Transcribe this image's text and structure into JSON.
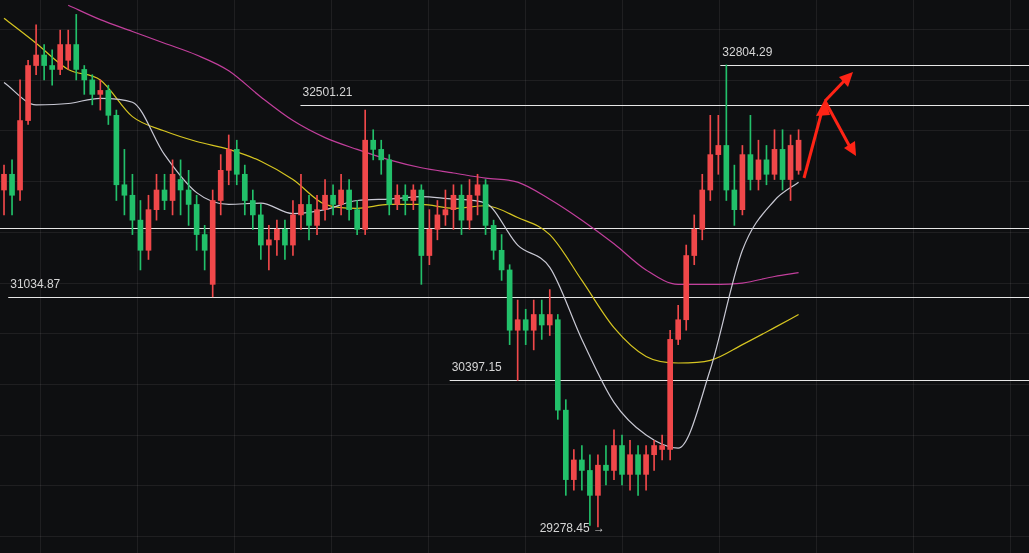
{
  "chart_data": {
    "type": "candlestick",
    "categories": [
      null,
      null,
      null,
      null,
      null,
      null,
      null,
      null,
      null,
      null,
      null,
      null,
      null,
      null,
      null,
      null,
      null,
      null,
      null,
      null,
      null,
      null,
      null,
      null,
      null,
      null,
      null,
      null,
      null,
      null,
      null,
      null,
      null,
      null,
      null,
      null,
      null,
      null,
      null,
      null,
      null,
      null,
      null,
      null,
      null,
      null,
      null,
      null,
      null,
      null,
      null,
      null,
      null,
      null,
      null,
      null,
      null,
      null,
      null,
      null,
      null,
      null,
      null,
      null,
      null,
      null,
      null,
      null,
      null,
      null,
      null,
      null,
      null,
      null,
      null,
      null,
      null,
      null,
      null,
      null,
      null,
      null,
      null,
      null,
      null,
      null,
      null,
      null,
      null,
      null,
      null,
      null,
      null,
      null,
      null,
      null,
      null,
      null,
      null,
      null
    ],
    "ohlc": [
      [
        31850,
        32040,
        31660,
        31970
      ],
      [
        31970,
        32080,
        31660,
        31810
      ],
      [
        31850,
        32690,
        31770,
        32380
      ],
      [
        32380,
        32840,
        32350,
        32800
      ],
      [
        32800,
        33110,
        32730,
        32880
      ],
      [
        32880,
        32960,
        32690,
        32800
      ],
      [
        32800,
        32920,
        32650,
        32770
      ],
      [
        32770,
        33070,
        32730,
        32960
      ],
      [
        32840,
        33070,
        32770,
        32960
      ],
      [
        32960,
        33190,
        32690,
        32770
      ],
      [
        32770,
        32800,
        32580,
        32690
      ],
      [
        32690,
        32730,
        32500,
        32580
      ],
      [
        32580,
        32690,
        32460,
        32610
      ],
      [
        32610,
        32650,
        32350,
        32420
      ],
      [
        32420,
        32460,
        31770,
        31890
      ],
      [
        31890,
        32160,
        31660,
        31810
      ],
      [
        31810,
        31970,
        31510,
        31620
      ],
      [
        31620,
        31770,
        31240,
        31390
      ],
      [
        31390,
        31810,
        31320,
        31700
      ],
      [
        31700,
        31970,
        31620,
        31850
      ],
      [
        31850,
        31970,
        31700,
        31770
      ],
      [
        31770,
        32080,
        31660,
        31970
      ],
      [
        31930,
        32080,
        31660,
        31850
      ],
      [
        31850,
        32000,
        31580,
        31740
      ],
      [
        31740,
        31810,
        31390,
        31510
      ],
      [
        31510,
        31580,
        31240,
        31390
      ],
      [
        31130,
        31850,
        31034.87,
        31770
      ],
      [
        31770,
        32120,
        31660,
        32000
      ],
      [
        32000,
        32270,
        31890,
        32160
      ],
      [
        32160,
        32230,
        31890,
        31970
      ],
      [
        31970,
        32040,
        31660,
        31770
      ],
      [
        31770,
        31850,
        31550,
        31660
      ],
      [
        31660,
        31740,
        31320,
        31430
      ],
      [
        31430,
        31580,
        31240,
        31470
      ],
      [
        31470,
        31620,
        31350,
        31550
      ],
      [
        31550,
        31620,
        31320,
        31430
      ],
      [
        31430,
        31770,
        31350,
        31660
      ],
      [
        31660,
        31970,
        31550,
        31740
      ],
      [
        31740,
        31810,
        31470,
        31580
      ],
      [
        31580,
        31810,
        31510,
        31700
      ],
      [
        31700,
        31930,
        31620,
        31810
      ],
      [
        31810,
        31890,
        31660,
        31740
      ],
      [
        31740,
        31970,
        31660,
        31850
      ],
      [
        31850,
        31930,
        31620,
        31700
      ],
      [
        31700,
        31770,
        31510,
        31550
      ],
      [
        31550,
        32460,
        31510,
        32230
      ],
      [
        32230,
        32310,
        32080,
        32160
      ],
      [
        32160,
        32230,
        31970,
        32080
      ],
      [
        32080,
        32120,
        31660,
        31740
      ],
      [
        31740,
        31890,
        31700,
        31810
      ],
      [
        31810,
        31890,
        31660,
        31770
      ],
      [
        31770,
        31890,
        31700,
        31850
      ],
      [
        31850,
        31890,
        31130,
        31350
      ],
      [
        31350,
        31700,
        31280,
        31550
      ],
      [
        31550,
        31770,
        31470,
        31660
      ],
      [
        31660,
        31850,
        31580,
        31700
      ],
      [
        31700,
        31890,
        31550,
        31810
      ],
      [
        31810,
        31890,
        31510,
        31620
      ],
      [
        31620,
        31930,
        31550,
        31810
      ],
      [
        31810,
        31970,
        31660,
        31890
      ],
      [
        31890,
        31930,
        31510,
        31580
      ],
      [
        31580,
        31620,
        31320,
        31390
      ],
      [
        31390,
        31510,
        31160,
        31240
      ],
      [
        31240,
        31280,
        30670,
        30780
      ],
      [
        30780,
        31010,
        30397.15,
        30860
      ],
      [
        30860,
        30940,
        30670,
        30780
      ],
      [
        30780,
        31010,
        30630,
        30900
      ],
      [
        30900,
        31010,
        30710,
        30820
      ],
      [
        30820,
        31090,
        30740,
        30900
      ],
      [
        30860,
        30900,
        30100,
        30170
      ],
      [
        30170,
        30250,
        29520,
        29640
      ],
      [
        29640,
        29870,
        29560,
        29790
      ],
      [
        29790,
        29900,
        29560,
        29710
      ],
      [
        29710,
        29830,
        29290,
        29520
      ],
      [
        29520,
        29830,
        29278.45,
        29750
      ],
      [
        29750,
        29900,
        29600,
        29710
      ],
      [
        29710,
        30020,
        29640,
        29900
      ],
      [
        29900,
        29980,
        29600,
        29680
      ],
      [
        29680,
        29940,
        29560,
        29830
      ],
      [
        29830,
        29900,
        29520,
        29680
      ],
      [
        29680,
        29900,
        29560,
        29830
      ],
      [
        29830,
        29940,
        29710,
        29900
      ],
      [
        29870,
        29980,
        29790,
        29900
      ],
      [
        29870,
        30780,
        29790,
        30710
      ],
      [
        30710,
        30970,
        30670,
        30860
      ],
      [
        30860,
        31430,
        30780,
        31350
      ],
      [
        31350,
        31660,
        31280,
        31550
      ],
      [
        31550,
        31970,
        31470,
        31850
      ],
      [
        31850,
        32420,
        31770,
        32120
      ],
      [
        32120,
        32420,
        31970,
        32190
      ],
      [
        32190,
        32804.29,
        31770,
        31850
      ],
      [
        31850,
        32040,
        31580,
        31700
      ],
      [
        31700,
        32190,
        31660,
        32120
      ],
      [
        32120,
        32420,
        31850,
        31930
      ],
      [
        31930,
        32230,
        31850,
        32080
      ],
      [
        32080,
        32190,
        31890,
        31970
      ],
      [
        31970,
        32310,
        31930,
        32160
      ],
      [
        32160,
        32310,
        31850,
        31930
      ],
      [
        31930,
        32270,
        31770,
        32190
      ],
      [
        32000,
        32310,
        31970,
        32230
      ]
    ],
    "colors": [
      "#f0484a",
      "#22c06a",
      "#f0484a",
      "#f0484a",
      "#f0484a",
      "#22c06a",
      "#22c06a",
      "#f0484a",
      "#f0484a",
      "#22c06a",
      "#22c06a",
      "#22c06a",
      "#f0484a",
      "#22c06a",
      "#22c06a",
      "#22c06a",
      "#22c06a",
      "#22c06a",
      "#f0484a",
      "#f0484a",
      "#22c06a",
      "#f0484a",
      "#22c06a",
      "#22c06a",
      "#22c06a",
      "#22c06a",
      "#f0484a",
      "#f0484a",
      "#f0484a",
      "#22c06a",
      "#22c06a",
      "#22c06a",
      "#22c06a",
      "#f0484a",
      "#f0484a",
      "#22c06a",
      "#f0484a",
      "#f0484a",
      "#22c06a",
      "#f0484a",
      "#f0484a",
      "#22c06a",
      "#f0484a",
      "#22c06a",
      "#22c06a",
      "#f0484a",
      "#22c06a",
      "#22c06a",
      "#22c06a",
      "#f0484a",
      "#22c06a",
      "#f0484a",
      "#22c06a",
      "#f0484a",
      "#f0484a",
      "#f0484a",
      "#f0484a",
      "#22c06a",
      "#f0484a",
      "#f0484a",
      "#22c06a",
      "#22c06a",
      "#22c06a",
      "#22c06a",
      "#f0484a",
      "#22c06a",
      "#f0484a",
      "#22c06a",
      "#f0484a",
      "#22c06a",
      "#22c06a",
      "#f0484a",
      "#22c06a",
      "#22c06a",
      "#f0484a",
      "#22c06a",
      "#f0484a",
      "#22c06a",
      "#f0484a",
      "#22c06a",
      "#f0484a",
      "#f0484a",
      "#f0484a",
      "#f0484a",
      "#f0484a",
      "#f0484a",
      "#f0484a",
      "#f0484a",
      "#f0484a",
      "#f0484a",
      "#22c06a",
      "#22c06a",
      "#f0484a",
      "#22c06a",
      "#f0484a",
      "#22c06a",
      "#f0484a",
      "#22c06a",
      "#f0484a",
      "#f0484a"
    ],
    "series": [
      {
        "type": "line",
        "color": "#c9c9d4",
        "values": [
          32670,
          null,
          null,
          null,
          32500,
          null,
          null,
          null,
          32510,
          null,
          null,
          null,
          32550,
          null,
          null,
          null,
          32520,
          null,
          null,
          null,
          32120,
          null,
          null,
          null,
          31830,
          null,
          null,
          null,
          31740,
          null,
          null,
          null,
          31750,
          null,
          null,
          null,
          31670,
          null,
          null,
          null,
          31700,
          null,
          null,
          null,
          31770,
          null,
          null,
          null,
          31780,
          null,
          null,
          null,
          31800,
          null,
          null,
          null,
          31780,
          null,
          null,
          null,
          31750,
          null,
          null,
          null,
          31430,
          null,
          null,
          null,
          31260,
          null,
          null,
          null,
          30710,
          null,
          null,
          null,
          30230,
          null,
          null,
          null,
          29980,
          null,
          null,
          null,
          29880,
          null,
          null,
          null,
          30480,
          null,
          null,
          null,
          31390,
          null,
          null,
          null,
          31770,
          null,
          null,
          31910
        ]
      },
      {
        "type": "line",
        "color": "#d6c521",
        "values": [
          33160,
          null,
          null,
          null,
          32970,
          null,
          null,
          null,
          32770,
          null,
          null,
          null,
          32690,
          null,
          null,
          null,
          32410,
          null,
          null,
          null,
          32300,
          null,
          null,
          null,
          32220,
          null,
          null,
          null,
          32160,
          null,
          null,
          null,
          32070,
          null,
          null,
          null,
          31930,
          null,
          null,
          null,
          31740,
          null,
          null,
          null,
          31710,
          null,
          null,
          null,
          31740,
          null,
          null,
          null,
          31740,
          null,
          null,
          null,
          31710,
          null,
          null,
          null,
          31730,
          null,
          null,
          null,
          31640,
          null,
          null,
          null,
          31510,
          null,
          null,
          null,
          31160,
          null,
          null,
          null,
          30800,
          null,
          null,
          null,
          30580,
          null,
          null,
          null,
          30530,
          null,
          null,
          null,
          30550,
          null,
          null,
          null,
          30670,
          null,
          null,
          null,
          30800,
          null,
          null,
          30900
        ]
      },
      {
        "type": "line",
        "color": "#c23f9c",
        "values": [
          null,
          null,
          null,
          null,
          null,
          null,
          null,
          null,
          33260,
          null,
          null,
          null,
          33150,
          null,
          null,
          null,
          33060,
          null,
          null,
          null,
          32970,
          null,
          null,
          null,
          32880,
          null,
          null,
          null,
          32760,
          null,
          null,
          null,
          32560,
          null,
          null,
          null,
          32380,
          null,
          null,
          null,
          32250,
          null,
          null,
          null,
          32160,
          null,
          null,
          null,
          32080,
          null,
          null,
          null,
          32020,
          null,
          null,
          null,
          31980,
          null,
          null,
          null,
          31940,
          null,
          null,
          null,
          31910,
          null,
          null,
          null,
          31780,
          null,
          null,
          null,
          31620,
          null,
          null,
          null,
          31440,
          null,
          null,
          null,
          31240,
          null,
          null,
          null,
          31130,
          null,
          null,
          null,
          31130,
          null,
          null,
          null,
          31140,
          null,
          null,
          null,
          31190,
          null,
          null,
          31220
        ]
      }
    ],
    "ylim": [
      29080,
      33300
    ],
    "grid": true,
    "ref_lines": [
      {
        "axis": "y",
        "value": 32804.29,
        "label": "32804.29",
        "color": "#e6e6e6"
      },
      {
        "axis": "y",
        "value": 32501.21,
        "label": "32501.21",
        "color": "#e6e6e6"
      },
      {
        "axis": "y",
        "value": 31560,
        "color": "#e6e6e6"
      },
      {
        "axis": "y",
        "value": 31034.87,
        "label": "31034.87",
        "color": "#e6e6e6"
      },
      {
        "axis": "y",
        "value": 30397.15,
        "label": "30397.15",
        "color": "#e6e6e6"
      }
    ],
    "annotations": [
      "29278.45 →"
    ]
  }
}
